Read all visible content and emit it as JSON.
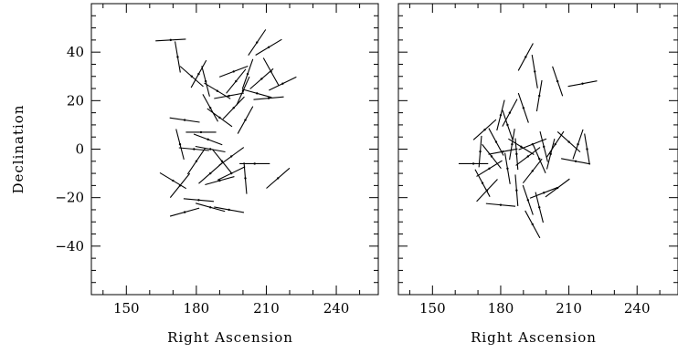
{
  "chart_data": [
    {
      "type": "scatter",
      "title": "",
      "xlabel": "Right Ascension",
      "ylabel": "Declination",
      "xlim": [
        135,
        258
      ],
      "ylim": [
        -60,
        60
      ],
      "xticks": [
        150,
        180,
        210,
        240
      ],
      "yticks": [
        -40,
        -20,
        0,
        20,
        40
      ],
      "grid": false,
      "point_style": "short line segments (position angle vectors) with centre dots",
      "vectors": [
        {
          "x": 169,
          "y": 45,
          "angle": 3,
          "length": 13
        },
        {
          "x": 172,
          "y": 38,
          "angle": -80,
          "length": 13
        },
        {
          "x": 206,
          "y": 44,
          "angle": 55,
          "length": 13
        },
        {
          "x": 211,
          "y": 42,
          "angle": 30,
          "length": 13
        },
        {
          "x": 178,
          "y": 30,
          "angle": -40,
          "length": 13
        },
        {
          "x": 181,
          "y": 31,
          "angle": 60,
          "length": 13
        },
        {
          "x": 184,
          "y": 28,
          "angle": -75,
          "length": 13
        },
        {
          "x": 196,
          "y": 32,
          "angle": 20,
          "length": 13
        },
        {
          "x": 202,
          "y": 31,
          "angle": 70,
          "length": 13
        },
        {
          "x": 197,
          "y": 28,
          "angle": 50,
          "length": 13
        },
        {
          "x": 208,
          "y": 29,
          "angle": 40,
          "length": 13
        },
        {
          "x": 212,
          "y": 32,
          "angle": -60,
          "length": 13
        },
        {
          "x": 217,
          "y": 27,
          "angle": 25,
          "length": 13
        },
        {
          "x": 189,
          "y": 24,
          "angle": -30,
          "length": 13
        },
        {
          "x": 194,
          "y": 22,
          "angle": 10,
          "length": 13
        },
        {
          "x": 200,
          "y": 24,
          "angle": 65,
          "length": 13
        },
        {
          "x": 206,
          "y": 23,
          "angle": -15,
          "length": 13
        },
        {
          "x": 211,
          "y": 21,
          "angle": 5,
          "length": 13
        },
        {
          "x": 186,
          "y": 17,
          "angle": -60,
          "length": 13
        },
        {
          "x": 196,
          "y": 17,
          "angle": 45,
          "length": 13
        },
        {
          "x": 190,
          "y": 13,
          "angle": -35,
          "length": 13
        },
        {
          "x": 201,
          "y": 12,
          "angle": 60,
          "length": 13
        },
        {
          "x": 175,
          "y": 12,
          "angle": -8,
          "length": 13
        },
        {
          "x": 182,
          "y": 7,
          "angle": 0,
          "length": 13
        },
        {
          "x": 185,
          "y": 4,
          "angle": -20,
          "length": 13
        },
        {
          "x": 179,
          "y": 0,
          "angle": -5,
          "length": 13
        },
        {
          "x": 186,
          "y": 0,
          "angle": -10,
          "length": 13
        },
        {
          "x": 173,
          "y": 2,
          "angle": -75,
          "length": 13
        },
        {
          "x": 180,
          "y": -5,
          "angle": 55,
          "length": 13
        },
        {
          "x": 191,
          "y": -5,
          "angle": -50,
          "length": 13
        },
        {
          "x": 195,
          "y": -3,
          "angle": 35,
          "length": 13
        },
        {
          "x": 205,
          "y": -6,
          "angle": 0,
          "length": 13
        },
        {
          "x": 201,
          "y": -12,
          "angle": -85,
          "length": 13
        },
        {
          "x": 186,
          "y": -10,
          "angle": 40,
          "length": 13
        },
        {
          "x": 195,
          "y": -10,
          "angle": 25,
          "length": 13
        },
        {
          "x": 190,
          "y": -13,
          "angle": 15,
          "length": 13
        },
        {
          "x": 215,
          "y": -12,
          "angle": 40,
          "length": 13
        },
        {
          "x": 170,
          "y": -13,
          "angle": -30,
          "length": 13
        },
        {
          "x": 173,
          "y": -15,
          "angle": 50,
          "length": 13
        },
        {
          "x": 181,
          "y": -21,
          "angle": -5,
          "length": 13
        },
        {
          "x": 175,
          "y": -26,
          "angle": 15,
          "length": 13
        },
        {
          "x": 186,
          "y": -24,
          "angle": -15,
          "length": 13
        },
        {
          "x": 194,
          "y": -25,
          "angle": -10,
          "length": 13
        }
      ]
    },
    {
      "type": "scatter",
      "title": "",
      "xlabel": "Right Ascension",
      "ylabel": "",
      "xlim": [
        135,
        258
      ],
      "ylim": [
        -60,
        60
      ],
      "xticks": [
        150,
        180,
        210,
        240
      ],
      "yticks": [
        -40,
        -20,
        0,
        20,
        40
      ],
      "grid": false,
      "point_style": "short line segments (position angle vectors) with centre dots",
      "vectors": [
        {
          "x": 191,
          "y": 38,
          "angle": 60,
          "length": 13
        },
        {
          "x": 195,
          "y": 32,
          "angle": -80,
          "length": 14
        },
        {
          "x": 205,
          "y": 28,
          "angle": -70,
          "length": 13
        },
        {
          "x": 216,
          "y": 27,
          "angle": 10,
          "length": 13
        },
        {
          "x": 197,
          "y": 22,
          "angle": 80,
          "length": 13
        },
        {
          "x": 190,
          "y": 17,
          "angle": -70,
          "length": 13
        },
        {
          "x": 184,
          "y": 15,
          "angle": 60,
          "length": 13
        },
        {
          "x": 180,
          "y": 14,
          "angle": 75,
          "length": 13
        },
        {
          "x": 183,
          "y": 10,
          "angle": -70,
          "length": 13
        },
        {
          "x": 173,
          "y": 8,
          "angle": 40,
          "length": 13
        },
        {
          "x": 178,
          "y": 3,
          "angle": -60,
          "length": 13
        },
        {
          "x": 185,
          "y": 2,
          "angle": 80,
          "length": 13
        },
        {
          "x": 189,
          "y": 1,
          "angle": -30,
          "length": 13
        },
        {
          "x": 194,
          "y": 2,
          "angle": 20,
          "length": 13
        },
        {
          "x": 199,
          "y": 1,
          "angle": -75,
          "length": 13
        },
        {
          "x": 204,
          "y": 2,
          "angle": 55,
          "length": 13
        },
        {
          "x": 210,
          "y": 3,
          "angle": -40,
          "length": 13
        },
        {
          "x": 214,
          "y": 2,
          "angle": 70,
          "length": 13
        },
        {
          "x": 218,
          "y": 0,
          "angle": -80,
          "length": 13
        },
        {
          "x": 171,
          "y": -1,
          "angle": 85,
          "length": 13
        },
        {
          "x": 176,
          "y": -3,
          "angle": -50,
          "length": 13
        },
        {
          "x": 181,
          "y": -1,
          "angle": 10,
          "length": 13
        },
        {
          "x": 187,
          "y": -2,
          "angle": -85,
          "length": 13
        },
        {
          "x": 192,
          "y": -3,
          "angle": 35,
          "length": 13
        },
        {
          "x": 197,
          "y": -4,
          "angle": -65,
          "length": 13
        },
        {
          "x": 202,
          "y": -2,
          "angle": 75,
          "length": 13
        },
        {
          "x": 213,
          "y": -5,
          "angle": -10,
          "length": 13
        },
        {
          "x": 168,
          "y": -6,
          "angle": 0,
          "length": 13
        },
        {
          "x": 175,
          "y": -8,
          "angle": 30,
          "length": 13
        },
        {
          "x": 183,
          "y": -8,
          "angle": -80,
          "length": 13
        },
        {
          "x": 194,
          "y": -9,
          "angle": 50,
          "length": 13
        },
        {
          "x": 172,
          "y": -14,
          "angle": -60,
          "length": 13
        },
        {
          "x": 174,
          "y": -17,
          "angle": 45,
          "length": 13
        },
        {
          "x": 187,
          "y": -17,
          "angle": -85,
          "length": 13
        },
        {
          "x": 199,
          "y": -18,
          "angle": 20,
          "length": 13
        },
        {
          "x": 205,
          "y": -16,
          "angle": 35,
          "length": 13
        },
        {
          "x": 192,
          "y": -21,
          "angle": -70,
          "length": 13
        },
        {
          "x": 197,
          "y": -24,
          "angle": -75,
          "length": 13
        },
        {
          "x": 180,
          "y": -23,
          "angle": -5,
          "length": 13
        },
        {
          "x": 194,
          "y": -31,
          "angle": -60,
          "length": 13
        }
      ]
    }
  ]
}
